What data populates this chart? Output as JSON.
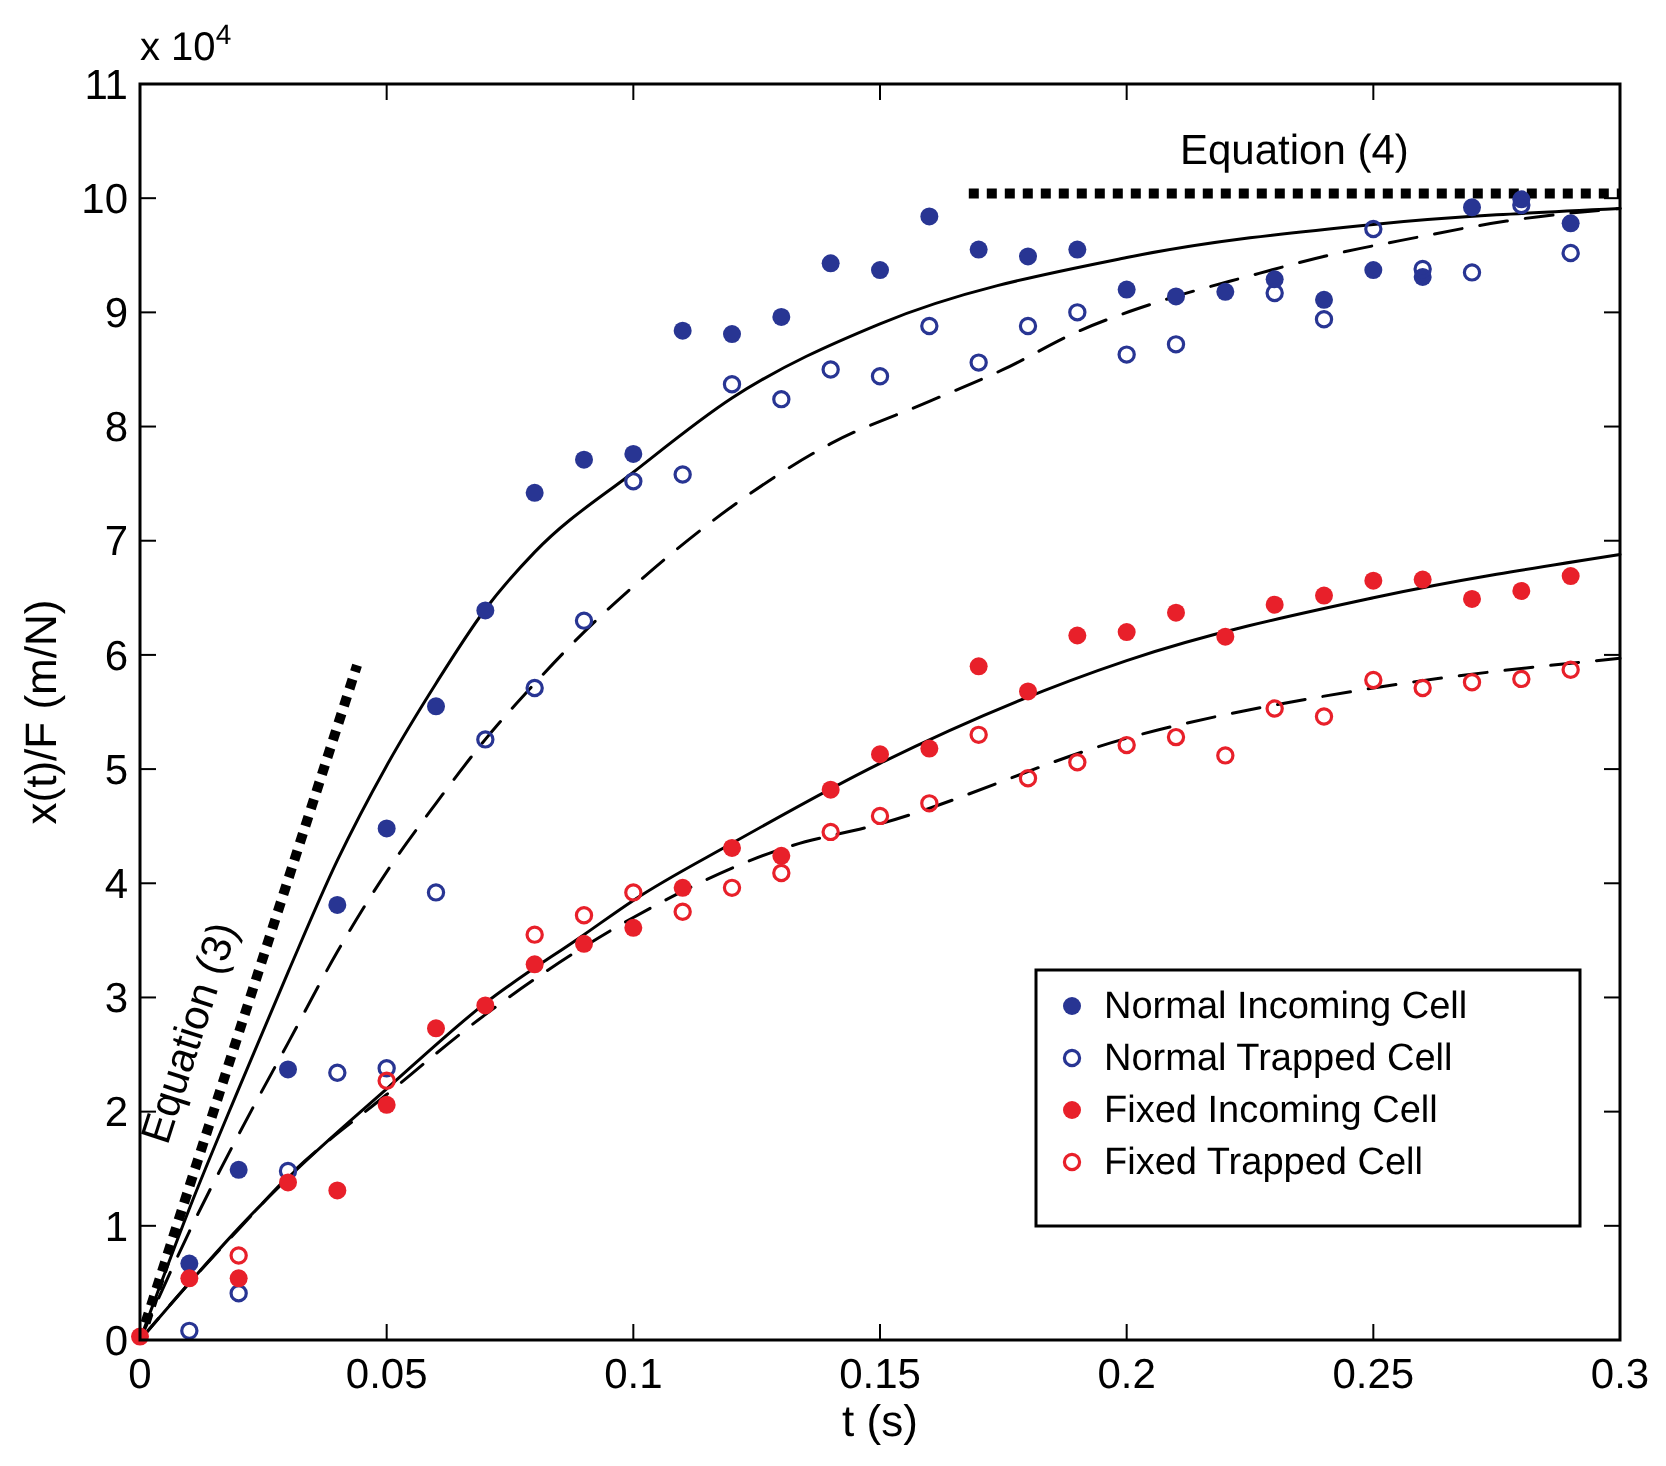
{
  "chart_data": {
    "type": "scatter",
    "xlabel": "t (s)",
    "ylabel": "x(t)/F (m/N)",
    "x": [
      0,
      0.01,
      0.02,
      0.03,
      0.04,
      0.05,
      0.06,
      0.07,
      0.08,
      0.09,
      0.1,
      0.11,
      0.12,
      0.13,
      0.14,
      0.15,
      0.16,
      0.17,
      0.18,
      0.19,
      0.2,
      0.21,
      0.22,
      0.23,
      0.24,
      0.25,
      0.26,
      0.27,
      0.28,
      0.29
    ],
    "series": [
      {
        "type": "line",
        "line_style": "solid",
        "color": "#000000",
        "x": [
          0,
          0.01,
          0.02,
          0.03,
          0.04,
          0.05,
          0.06,
          0.07,
          0.08,
          0.1,
          0.12,
          0.15,
          0.2,
          0.25,
          0.3
        ],
        "values": [
          0,
          1.15,
          2.2,
          3.22,
          4.2,
          5.03,
          5.75,
          6.4,
          6.9,
          7.6,
          8.25,
          8.9,
          9.48,
          9.77,
          9.91
        ]
      },
      {
        "type": "line",
        "line_style": "dashed",
        "color": "#000000",
        "x": [
          0,
          0.01,
          0.02,
          0.03,
          0.04,
          0.05,
          0.06,
          0.07,
          0.08,
          0.09,
          0.1,
          0.12,
          0.14,
          0.16,
          0.175,
          0.19,
          0.207,
          0.225,
          0.241,
          0.258,
          0.277,
          0.3
        ],
        "values": [
          0,
          0.95,
          1.8,
          2.6,
          3.4,
          4.1,
          4.7,
          5.26,
          5.75,
          6.2,
          6.6,
          7.3,
          7.85,
          8.22,
          8.5,
          8.83,
          9.1,
          9.32,
          9.5,
          9.65,
          9.8,
          9.91
        ]
      },
      {
        "type": "line",
        "line_style": "solid",
        "color": "#000000",
        "x": [
          0,
          0.01,
          0.02,
          0.03,
          0.05,
          0.07,
          0.09,
          0.1,
          0.12,
          0.15,
          0.2,
          0.25,
          0.3
        ],
        "values": [
          0,
          0.5,
          0.98,
          1.42,
          2.2,
          2.95,
          3.55,
          3.85,
          4.35,
          5.05,
          5.95,
          6.5,
          6.88
        ]
      },
      {
        "type": "line",
        "line_style": "dashed",
        "color": "#000000",
        "x": [
          0,
          0.01,
          0.02,
          0.03,
          0.05,
          0.07,
          0.1,
          0.13,
          0.15,
          0.2,
          0.25,
          0.3
        ],
        "values": [
          0,
          0.5,
          0.97,
          1.43,
          2.15,
          2.85,
          3.7,
          4.3,
          4.52,
          5.27,
          5.71,
          5.97
        ]
      },
      {
        "type": "line",
        "line_style": "dotted",
        "color": "#000000",
        "x": [
          0,
          0.044
        ],
        "values": [
          0,
          5.91
        ]
      },
      {
        "type": "line",
        "line_style": "dotted",
        "color": "#000000",
        "x": [
          0.168,
          0.3
        ],
        "values": [
          10.04,
          10.04
        ]
      },
      {
        "name": "Normal Incoming Cell",
        "marker": "circle",
        "color": "#283593",
        "values": [
          null,
          0.67,
          1.49,
          2.37,
          3.81,
          4.48,
          5.55,
          6.39,
          7.42,
          7.71,
          7.76,
          8.84,
          8.81,
          8.96,
          9.43,
          9.37,
          9.84,
          9.55,
          9.49,
          9.55,
          9.2,
          9.14,
          9.18,
          9.29,
          9.11,
          9.37,
          9.31,
          9.92,
          9.99,
          9.78
        ]
      },
      {
        "name": "Normal Trapped Cell",
        "marker": "circle-open",
        "color": "#283593",
        "values": [
          null,
          0.08,
          0.41,
          1.48,
          2.34,
          2.38,
          3.92,
          5.26,
          5.71,
          6.3,
          7.52,
          7.58,
          8.37,
          8.24,
          8.5,
          8.44,
          8.88,
          8.56,
          8.88,
          9.0,
          8.63,
          8.72,
          null,
          9.17,
          8.94,
          9.73,
          9.38,
          9.35,
          9.94,
          9.52
        ]
      },
      {
        "name": "Fixed Incoming Cell",
        "marker": "circle",
        "color": "#e8202a",
        "values": [
          0.03,
          0.54,
          0.54,
          1.38,
          1.31,
          2.06,
          2.73,
          2.93,
          3.29,
          3.47,
          3.61,
          3.96,
          4.31,
          4.24,
          4.82,
          5.13,
          5.18,
          5.9,
          5.68,
          6.17,
          6.2,
          6.37,
          6.16,
          6.44,
          6.52,
          6.65,
          6.66,
          6.49,
          6.56,
          6.69
        ]
      },
      {
        "name": "Fixed Trapped Cell",
        "marker": "circle-open",
        "color": "#e8202a",
        "values": [
          null,
          null,
          0.74,
          null,
          null,
          2.27,
          null,
          null,
          3.55,
          3.72,
          3.92,
          3.75,
          3.96,
          4.09,
          4.45,
          4.59,
          4.7,
          5.3,
          4.92,
          5.06,
          5.21,
          5.28,
          5.12,
          5.53,
          5.46,
          5.78,
          5.71,
          5.76,
          5.79,
          5.87
        ]
      }
    ],
    "xlim": [
      0,
      0.3
    ],
    "xticks": [
      0,
      0.05,
      0.1,
      0.15,
      0.2,
      0.25,
      0.3
    ],
    "ylim": [
      0,
      11
    ],
    "yticks": [
      0,
      1,
      2,
      3,
      4,
      5,
      6,
      7,
      8,
      9,
      10,
      11
    ],
    "grid": false,
    "legend": "bottom right",
    "annotations": [
      "Equation (3)",
      "Equation (4)",
      "x 10$^{4}$"
    ]
  }
}
